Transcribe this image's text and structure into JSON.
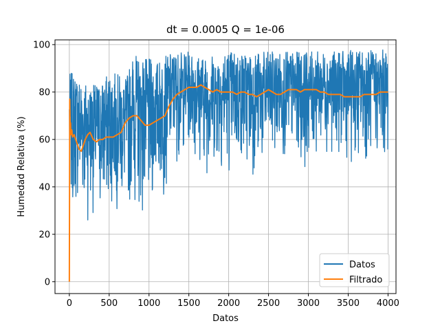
{
  "chart_data": {
    "type": "line",
    "title": "dt = 0.0005   Q = 1e-06",
    "xlabel": "Datos",
    "ylabel": "Humedad Relativa (%)",
    "xlim": [
      -180,
      4100
    ],
    "ylim": [
      -5,
      102
    ],
    "xticks": [
      0,
      500,
      1000,
      1500,
      2000,
      2500,
      3000,
      3500,
      4000
    ],
    "yticks": [
      0,
      20,
      40,
      60,
      80,
      100
    ],
    "grid": true,
    "legend_position": "lower-right",
    "series": [
      {
        "name": "Datos",
        "color": "#1f77b4",
        "description_points": {
          "x_range": [
            0,
            4000
          ],
          "num_points": 4000,
          "envelope_x": [
            0,
            100,
            200,
            300,
            400,
            500,
            600,
            700,
            800,
            900,
            1000,
            1100,
            1200,
            1300,
            1400,
            1500,
            1600,
            1700,
            1800,
            1900,
            2000,
            2200,
            2400,
            2600,
            2800,
            3000,
            3200,
            3400,
            3600,
            3800,
            4000
          ],
          "envelope_min": [
            26,
            28,
            24,
            28,
            23,
            28,
            30,
            27,
            31,
            24,
            22,
            35,
            34,
            50,
            50,
            55,
            50,
            45,
            45,
            45,
            45,
            45,
            43,
            50,
            50,
            48,
            55,
            52,
            48,
            50,
            48
          ],
          "envelope_max": [
            88,
            88,
            85,
            83,
            85,
            88,
            88,
            85,
            96,
            95,
            94,
            93,
            95,
            97,
            97,
            97,
            96,
            95,
            96,
            97,
            98,
            97,
            97,
            97,
            97,
            97,
            97,
            97,
            98,
            98,
            98
          ]
        }
      },
      {
        "name": "Filtrado",
        "color": "#ff7f0e",
        "x": [
          0,
          5,
          10,
          15,
          20,
          30,
          40,
          60,
          80,
          100,
          120,
          150,
          180,
          200,
          230,
          260,
          300,
          340,
          380,
          420,
          460,
          500,
          550,
          600,
          650,
          700,
          750,
          800,
          850,
          900,
          950,
          1000,
          1050,
          1100,
          1150,
          1200,
          1250,
          1300,
          1350,
          1400,
          1450,
          1500,
          1550,
          1600,
          1650,
          1700,
          1750,
          1800,
          1850,
          1900,
          1950,
          2000,
          2050,
          2100,
          2150,
          2200,
          2250,
          2300,
          2350,
          2400,
          2450,
          2500,
          2550,
          2600,
          2650,
          2700,
          2750,
          2800,
          2850,
          2900,
          2950,
          3000,
          3050,
          3100,
          3150,
          3200,
          3250,
          3300,
          3350,
          3400,
          3450,
          3500,
          3550,
          3600,
          3650,
          3700,
          3750,
          3800,
          3850,
          3900,
          3950,
          4000
        ],
        "y": [
          0,
          77,
          65,
          67,
          62,
          64,
          61,
          62,
          60,
          58,
          56,
          55,
          58,
          60,
          62,
          63,
          60,
          59,
          60,
          60,
          61,
          61,
          61,
          62,
          63,
          67,
          69,
          70,
          70,
          68,
          66,
          66,
          67,
          68,
          69,
          70,
          74,
          77,
          79,
          80,
          81,
          82,
          82,
          82,
          83,
          82,
          81,
          80,
          81,
          80,
          80,
          80,
          80,
          79,
          80,
          80,
          79,
          79,
          78,
          79,
          80,
          81,
          80,
          79,
          79,
          80,
          81,
          81,
          81,
          80,
          81,
          81,
          81,
          81,
          80,
          80,
          79,
          79,
          79,
          79,
          78,
          78,
          78,
          78,
          78,
          79,
          79,
          79,
          79,
          80,
          80,
          80
        ]
      }
    ]
  }
}
